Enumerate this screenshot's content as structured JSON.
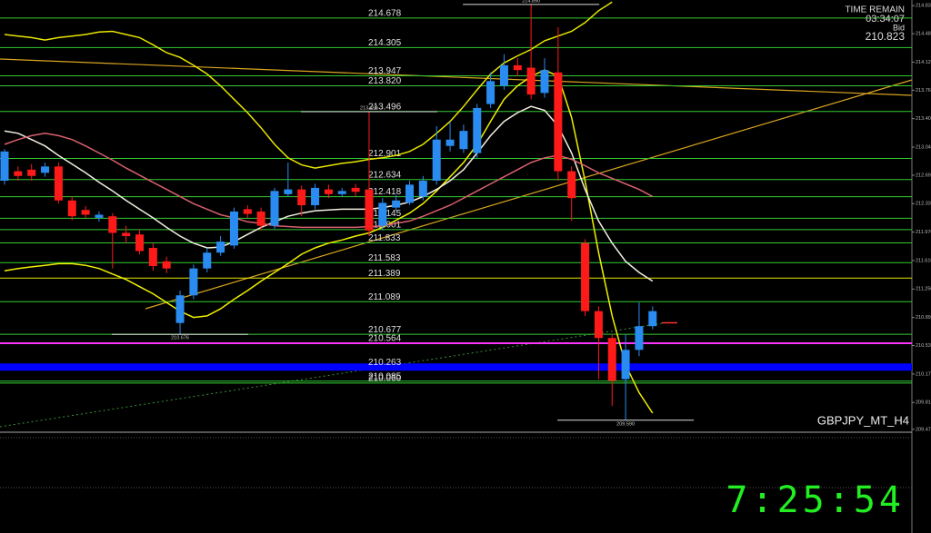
{
  "chart_data": {
    "type": "candlestick",
    "title": "GBPJPY_MT_H4",
    "ylim": [
      209.45,
      214.906
    ],
    "yticks": [
      214.835,
      {
        "value": 214.48,
        "label": "214.480"
      },
      {
        "value": 214.12,
        "label": "214.120"
      },
      213.765,
      213.405,
      213.045,
      {
        "value": 212.69,
        "label": "212.690"
      },
      {
        "value": 212.33,
        "label": "212.330"
      },
      {
        "value": 211.97,
        "label": "211.970"
      },
      {
        "value": 211.61,
        "label": "211.610"
      },
      {
        "value": 211.25,
        "label": "211.250"
      },
      {
        "value": 210.89,
        "label": "210.890"
      },
      210.535,
      210.175,
      209.815,
      209.475
    ],
    "up_color": "#2a8cf0",
    "down_color": "#ff1a1a",
    "open": [
      212.62,
      212.74,
      212.76,
      212.72,
      212.8,
      212.37,
      212.25,
      212.15,
      212.17,
      211.96,
      211.94,
      211.77,
      211.6,
      210.82,
      211.17,
      211.51,
      211.71,
      211.8,
      212.26,
      212.23,
      212.05,
      212.45,
      212.51,
      212.31,
      212.51,
      212.45,
      212.53,
      212.51,
      212.05,
      212.28,
      212.34,
      212.42,
      212.62,
      213.06,
      213.02,
      212.97,
      213.59,
      213.82,
      214.08,
      214.05,
      213.73,
      213.99,
      212.74,
      211.83,
      210.97,
      210.63,
      210.11,
      210.48,
      210.78
    ],
    "high": [
      213.02,
      212.8,
      212.83,
      212.85,
      212.85,
      212.42,
      212.3,
      212.23,
      212.21,
      212.05,
      212.0,
      211.83,
      211.66,
      211.23,
      211.56,
      211.77,
      211.92,
      212.28,
      212.31,
      212.28,
      212.53,
      212.85,
      212.56,
      212.58,
      212.57,
      212.53,
      212.58,
      213.493,
      212.4,
      212.44,
      212.62,
      212.68,
      213.31,
      213.37,
      213.33,
      213.59,
      213.99,
      214.22,
      214.17,
      214.85,
      214.17,
      214.56,
      212.8,
      211.88,
      211.03,
      210.68,
      210.68,
      211.08,
      211.03
    ],
    "low": [
      212.57,
      212.62,
      212.62,
      212.67,
      212.33,
      212.12,
      212.15,
      212.1,
      211.51,
      211.83,
      211.69,
      211.48,
      211.45,
      210.676,
      211.12,
      211.46,
      211.67,
      211.76,
      212.15,
      211.99,
      212.01,
      212.42,
      212.17,
      212.26,
      212.4,
      212.42,
      212.42,
      211.92,
      211.99,
      212.24,
      212.31,
      212.37,
      212.57,
      212.99,
      212.97,
      212.91,
      213.54,
      213.77,
      213.94,
      213.65,
      213.67,
      212.62,
      212.11,
      210.91,
      210.11,
      209.77,
      209.59,
      210.4,
      210.74
    ],
    "close": [
      212.99,
      212.68,
      212.68,
      212.8,
      212.37,
      212.17,
      212.19,
      212.19,
      211.96,
      211.92,
      211.73,
      211.54,
      211.51,
      211.17,
      211.51,
      211.71,
      211.85,
      212.23,
      212.2,
      212.05,
      212.49,
      212.51,
      212.31,
      212.53,
      212.45,
      212.49,
      212.48,
      211.99,
      212.34,
      212.37,
      212.57,
      212.62,
      213.14,
      213.14,
      213.25,
      213.54,
      213.88,
      214.08,
      214.02,
      213.71,
      214.02,
      212.74,
      212.4,
      210.97,
      210.63,
      210.09,
      210.48,
      210.78,
      210.97
    ],
    "series": [
      {
        "color": "#e6e600",
        "values": [
          214.47,
          214.45,
          214.43,
          214.4,
          214.43,
          214.45,
          214.47,
          214.5,
          214.51,
          214.47,
          214.43,
          214.34,
          214.24,
          214.18,
          214.08,
          213.97,
          213.82,
          213.65,
          213.48,
          213.29,
          213.08,
          212.91,
          212.82,
          212.78,
          212.81,
          212.84,
          212.86,
          212.89,
          212.91,
          212.94,
          212.99,
          213.08,
          213.22,
          213.37,
          213.56,
          213.77,
          213.97,
          214.11,
          214.2,
          214.28,
          214.39,
          214.45,
          214.51,
          214.62,
          214.77,
          214.88,
          null,
          null,
          null
        ]
      },
      {
        "color": "#f0f000",
        "values": [
          211.48,
          211.51,
          211.53,
          211.55,
          211.57,
          211.57,
          211.55,
          211.51,
          211.44,
          211.37,
          211.28,
          211.19,
          211.08,
          210.97,
          210.89,
          210.91,
          211.0,
          211.12,
          211.23,
          211.35,
          211.46,
          211.57,
          211.69,
          211.77,
          211.83,
          211.87,
          211.92,
          211.96,
          212.03,
          212.12,
          212.21,
          212.33,
          212.49,
          212.67,
          212.85,
          213.08,
          213.37,
          213.65,
          213.82,
          213.94,
          214.02,
          213.94,
          213.42,
          212.62,
          211.71,
          210.91,
          210.29,
          209.94,
          209.68
        ]
      },
      {
        "color": "#f2efe0",
        "values": [
          213.25,
          213.22,
          213.14,
          213.06,
          212.94,
          212.83,
          212.72,
          212.6,
          212.49,
          212.37,
          212.26,
          212.15,
          212.03,
          211.92,
          211.83,
          211.77,
          211.78,
          211.85,
          211.94,
          212.03,
          212.1,
          212.17,
          212.21,
          212.24,
          212.25,
          212.26,
          212.26,
          212.26,
          212.28,
          212.31,
          212.35,
          212.42,
          212.51,
          212.62,
          212.76,
          212.97,
          213.19,
          213.37,
          213.48,
          213.56,
          213.51,
          213.31,
          212.97,
          212.51,
          212.11,
          211.83,
          211.6,
          211.46,
          211.35
        ]
      },
      {
        "color": "#d9606e",
        "values": [
          213.08,
          213.14,
          213.19,
          213.22,
          213.19,
          213.14,
          213.06,
          212.97,
          212.88,
          212.78,
          212.69,
          212.6,
          212.51,
          212.42,
          212.33,
          212.26,
          212.19,
          212.15,
          212.1,
          212.08,
          212.05,
          212.04,
          212.03,
          212.03,
          212.03,
          212.03,
          212.03,
          212.04,
          212.05,
          212.08,
          212.11,
          212.17,
          212.24,
          212.31,
          212.4,
          212.49,
          212.58,
          212.67,
          212.76,
          212.85,
          212.91,
          212.94,
          212.89,
          212.81,
          212.72,
          212.65,
          212.58,
          212.51,
          212.42
        ]
      }
    ],
    "levels": {
      "values": [
        214.678,
        214.305,
        213.947,
        213.82,
        213.496,
        212.901,
        212.634,
        212.418,
        212.145,
        212.001,
        211.833,
        211.583,
        211.389,
        211.089,
        210.677,
        210.564,
        210.263,
        210.085,
        210.06
      ],
      "value_labels": [
        "214.678",
        "214.305",
        "213.947",
        "213.820",
        "213.496",
        "212.901",
        "212.634",
        "212.418",
        "212.145",
        "212.001",
        "211.833",
        "211.583",
        "211.389",
        "211.089",
        "210.677",
        "210.564",
        "210.263",
        "210.085",
        "210.060"
      ],
      "colors": [
        "#33cc33",
        "#33cc33",
        "#33cc33",
        "#33cc33",
        "#33cc33",
        "#33cc33",
        "#33cc33",
        "#33cc33",
        "#33cc33",
        "#33cc33",
        "#33cc33",
        "#33cc33",
        "#e6e600",
        "#33cc33",
        "#33cc33",
        "#ff33ff",
        "#0000ff",
        "#33cc33",
        "#33cc33"
      ]
    },
    "annotations": [
      {
        "value": 214.85,
        "label": "214.850"
      },
      {
        "value": 213.493,
        "label": "213.493"
      },
      {
        "value": 210.676,
        "label": "210.676"
      },
      {
        "value": 209.59,
        "label": "209.590"
      }
    ],
    "info": {
      "time_remain_label": "TIME REMAIN",
      "time_remain": "03:34:07",
      "bid_label": "Bid",
      "bid": 210.823
    },
    "clock": "7:25:54"
  }
}
